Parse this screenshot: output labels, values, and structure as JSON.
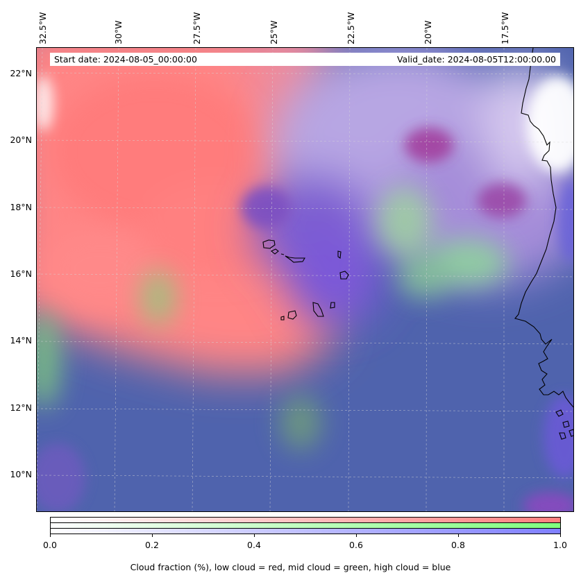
{
  "map": {
    "lon_labels": [
      "32.5°W",
      "30°W",
      "27.5°W",
      "25°W",
      "22.5°W",
      "20°W",
      "17.5°W"
    ],
    "lat_labels": [
      "22°N",
      "20°N",
      "18°N",
      "16°N",
      "14°N",
      "12°N",
      "10°N"
    ],
    "start_date": "Start date: 2024-08-05_00:00:00",
    "valid_date": "Valid_date: 2024-08-05T12:00:00.00",
    "layer_colors": {
      "low": "#ff7f7f",
      "mid": "#7fff7f",
      "high": "#7f7fff"
    }
  },
  "colorbar": {
    "ticks": [
      "0.0",
      "0.2",
      "0.4",
      "0.6",
      "0.8",
      "1.0"
    ],
    "caption": "Cloud fraction (%), low cloud = red, mid cloud = green, high cloud = blue"
  }
}
